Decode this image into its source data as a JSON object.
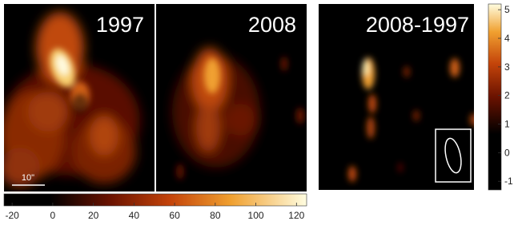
{
  "panels": [
    {
      "label": "1997"
    },
    {
      "label": "2008"
    },
    {
      "label": "2008-1997"
    }
  ],
  "scale_bar": {
    "label": "10\""
  },
  "colorbars": [
    {
      "orientation": "horizontal",
      "lim": [
        -24,
        125
      ],
      "ticks": [
        -20,
        0,
        20,
        40,
        60,
        80,
        100,
        120
      ]
    },
    {
      "orientation": "vertical",
      "lim": [
        -1.3,
        5.2
      ],
      "ticks": [
        5,
        4,
        3,
        2,
        1,
        0,
        -1
      ]
    }
  ]
}
